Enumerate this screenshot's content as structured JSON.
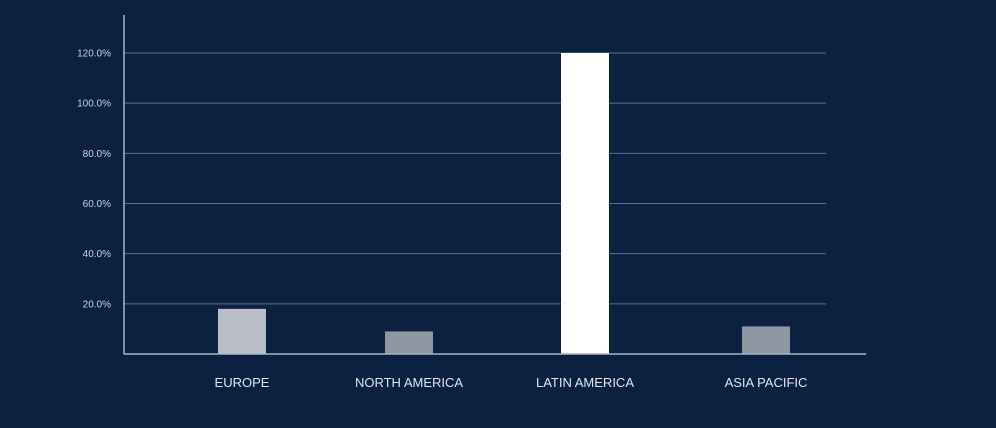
{
  "chart_data": {
    "type": "bar",
    "categories": [
      "EUROPE",
      "NORTH AMERICA",
      "LATIN AMERICA",
      "ASIA PACIFIC"
    ],
    "values": [
      18,
      9,
      120,
      11
    ],
    "ylim": [
      0,
      120
    ],
    "yticks": [
      20,
      40,
      60,
      80,
      100,
      120
    ],
    "ytick_labels": [
      "20.0%",
      "40.0%",
      "60.0%",
      "80.0%",
      "100.0%",
      "120.0%"
    ],
    "grid": true,
    "title": "",
    "xlabel": "",
    "ylabel": ""
  },
  "colors": {
    "background": "#0c2140",
    "bars": [
      "#b9bec6",
      "#8f97a3",
      "#ffffff",
      "#8f97a3"
    ],
    "gridline": "#5b6f8c",
    "axis": "#aab6c6"
  }
}
